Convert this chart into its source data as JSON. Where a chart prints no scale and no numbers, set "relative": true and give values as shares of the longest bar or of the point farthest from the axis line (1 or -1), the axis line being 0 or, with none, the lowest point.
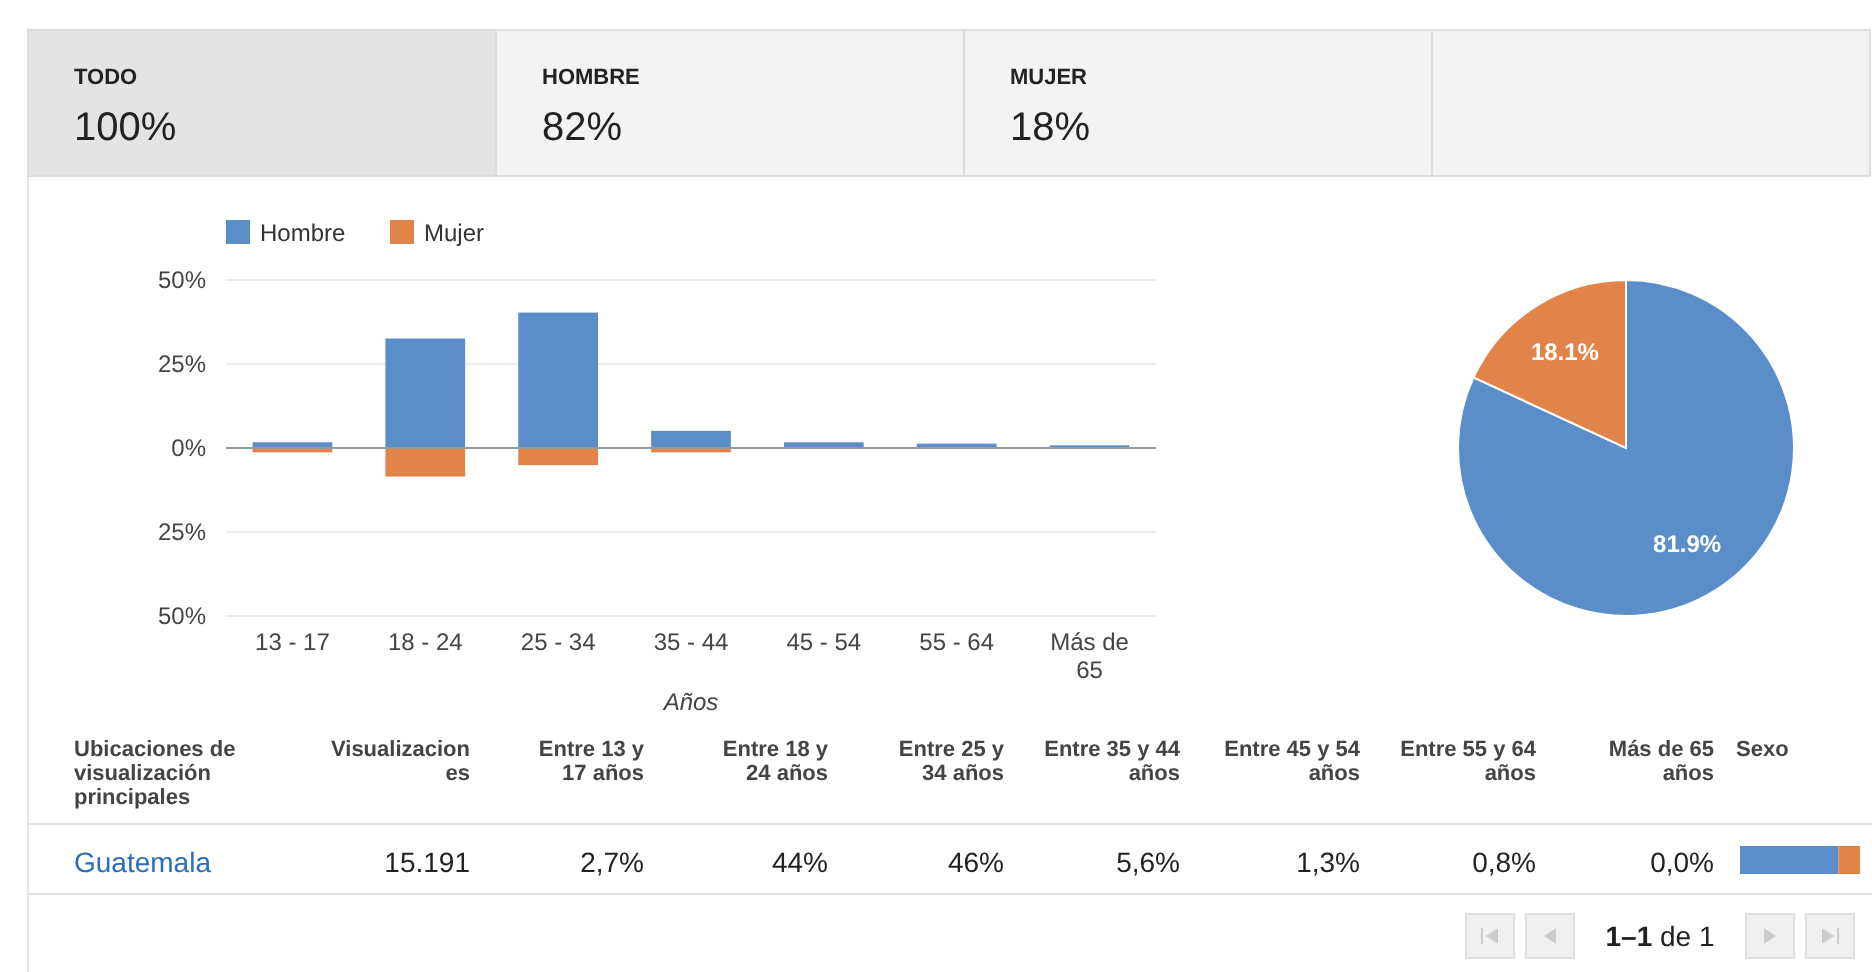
{
  "chart_data": [
    {
      "type": "other",
      "categories": [
        "TODO",
        "HOMBRE",
        "MUJER"
      ],
      "value_labels": [
        "100%",
        "82%",
        "18%"
      ]
    },
    {
      "type": "bar",
      "xlabel": "Años",
      "categories": [
        "13 - 17",
        "18 - 24",
        "25 - 34",
        "35 - 44",
        "45 - 54",
        "55 - 64",
        "Más de 65"
      ],
      "series": [
        {
          "name": "Hombre",
          "color": "#5b8ec9",
          "values": [
            1.7,
            32.6,
            40.3,
            5.1,
            1.7,
            1.3,
            0.8
          ]
        },
        {
          "name": "Mujer",
          "color": "#e2844a",
          "values": [
            -1.3,
            -8.5,
            -5.1,
            -1.3,
            0,
            0,
            0
          ]
        }
      ],
      "ylim": [
        -50,
        50
      ],
      "yticks": [
        {
          "value": -50,
          "label": "50%"
        },
        {
          "value": -25,
          "label": "25%"
        },
        {
          "value": 0,
          "label": "0%"
        },
        {
          "value": 25,
          "label": "25%"
        },
        {
          "value": 50,
          "label": "50%"
        }
      ],
      "grid": "y",
      "legend": "top left",
      "stacked": true
    },
    {
      "type": "pie",
      "categories": [
        null,
        null
      ],
      "values": [
        81.9,
        18.1
      ],
      "colors": [
        "#5b8ec9",
        "#e2844a"
      ],
      "value_labels": [
        "81.9%",
        "18.1%"
      ]
    },
    {
      "type": "other",
      "categories": [
        "Ubicaciones de\nvisualización\nprincipales",
        "Visualizacion\nes",
        "Entre 13 y\n17 años",
        "Entre 18 y\n24 años",
        "Entre 25 y\n34 años",
        "Entre 35 y 44\naños",
        "Entre 45 y 54\naños",
        "Entre 55 y 64\naños",
        "Más de 65\naños",
        "Sexo"
      ],
      "value_labels": [
        "Guatemala",
        "15.191",
        "2,7%",
        "44%",
        "46%",
        "5,6%",
        "1,3%",
        "0,8%",
        "0,0%",
        null
      ],
      "annotations": [
        "1–1 de 1"
      ]
    },
    {
      "type": "bar",
      "orientation": "horizontal",
      "stacked": true,
      "relative": true,
      "categories": [
        null
      ],
      "series": [
        {
          "color": "#5b8ec9",
          "values": [
            0.82
          ]
        },
        {
          "color": "#e2844a",
          "values": [
            0.18
          ]
        }
      ]
    }
  ]
}
